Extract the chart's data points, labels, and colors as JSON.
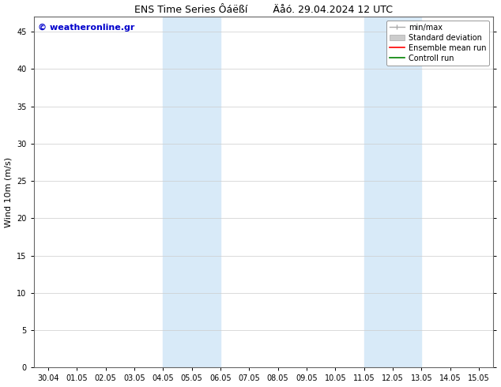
{
  "title": "ENS Time Series Ôáëßí        Äåó. 29.04.2024 12 UTC",
  "ylabel": "Wind 10m (m/s)",
  "watermark": "© weatheronline.gr",
  "watermark_color": "#0000cc",
  "background_color": "#ffffff",
  "plot_bg_color": "#ffffff",
  "shaded_regions": [
    {
      "xstart": 4.0,
      "xend": 6.0,
      "color": "#d8eaf8"
    },
    {
      "xstart": 11.0,
      "xend": 13.0,
      "color": "#d8eaf8"
    }
  ],
  "xlim": [
    -0.5,
    15.5
  ],
  "ylim": [
    0,
    47
  ],
  "yticks": [
    0,
    5,
    10,
    15,
    20,
    25,
    30,
    35,
    40,
    45
  ],
  "xtick_labels": [
    "30.04",
    "01.05",
    "02.05",
    "03.05",
    "04.05",
    "05.05",
    "06.05",
    "07.05",
    "08.05",
    "09.05",
    "10.05",
    "11.05",
    "12.05",
    "13.05",
    "14.05",
    "15.05"
  ],
  "xtick_positions": [
    0,
    1,
    2,
    3,
    4,
    5,
    6,
    7,
    8,
    9,
    10,
    11,
    12,
    13,
    14,
    15
  ],
  "grid_color": "#cccccc",
  "legend_items": [
    {
      "label": "min/max",
      "color": "#aaaaaa",
      "style": "minmax"
    },
    {
      "label": "Standard deviation",
      "color": "#cccccc",
      "style": "fill"
    },
    {
      "label": "Ensemble mean run",
      "color": "#ff0000",
      "style": "line"
    },
    {
      "label": "Controll run",
      "color": "#008000",
      "style": "line"
    }
  ],
  "title_fontsize": 9,
  "label_fontsize": 8,
  "tick_fontsize": 7,
  "watermark_fontsize": 8,
  "legend_fontsize": 7
}
